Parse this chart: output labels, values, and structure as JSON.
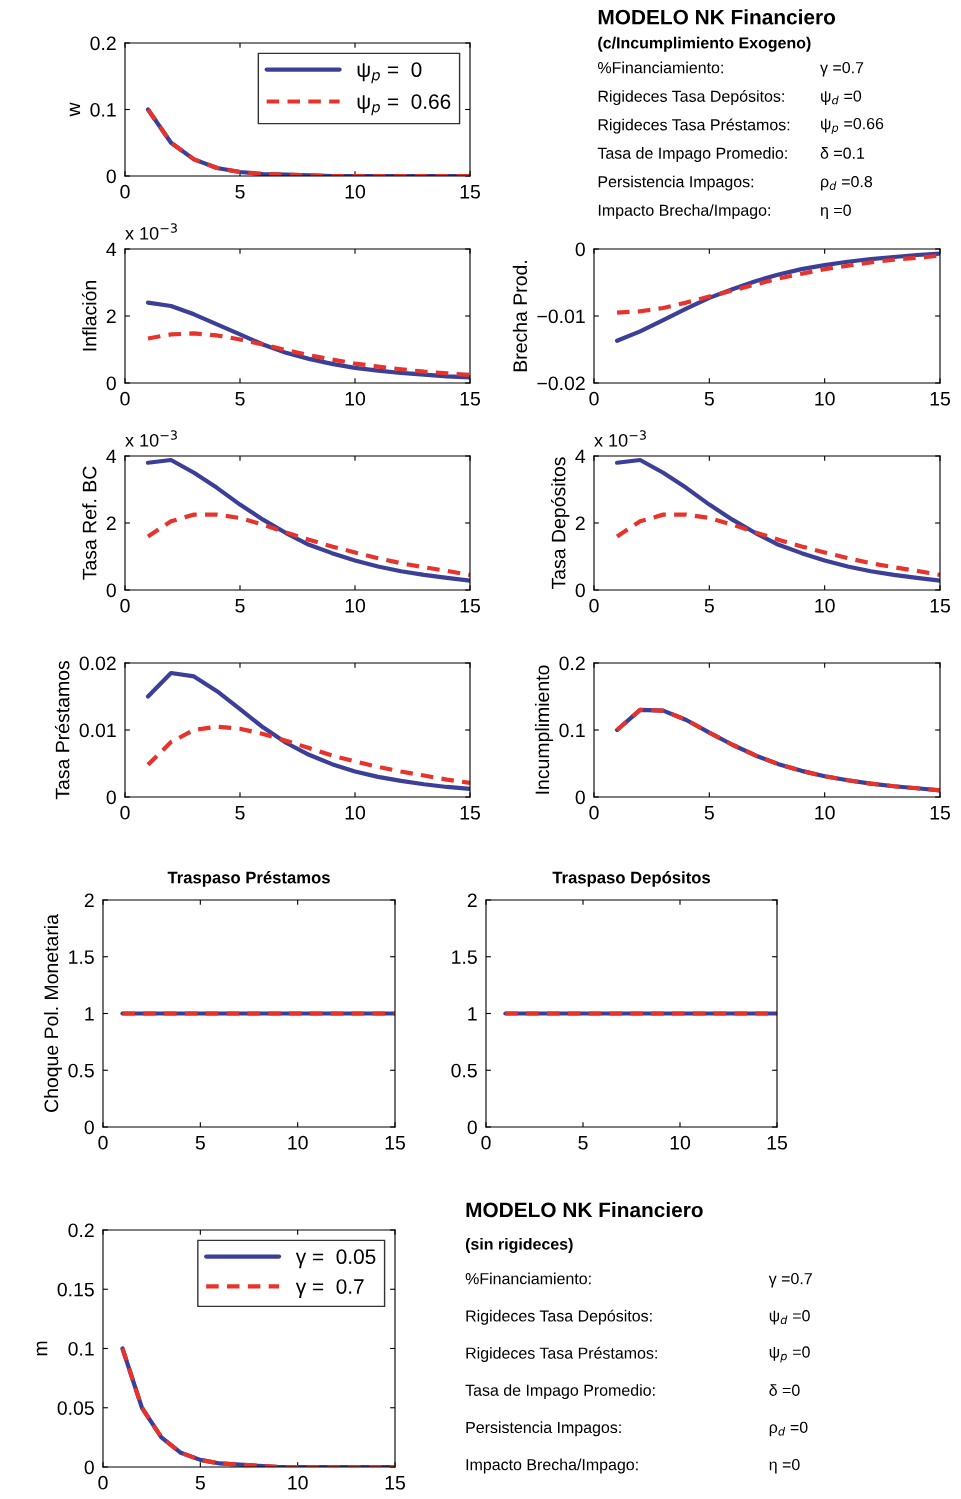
{
  "chart_data": [
    {
      "type": "line",
      "ylabel": "w",
      "x": [
        1,
        2,
        3,
        4,
        5,
        6,
        7,
        8,
        9,
        10,
        11,
        12,
        13,
        14,
        15
      ],
      "xlim": [
        0,
        15
      ],
      "xticks": [
        0,
        5,
        10,
        15
      ],
      "ylim": [
        0,
        0.2
      ],
      "yticks": [
        0,
        0.1,
        0.2
      ],
      "legend": "top right",
      "series": [
        {
          "name": "ψ$_{p}$ =  0",
          "color": "#3b3f98",
          "line_style": "solid",
          "values": [
            0.1,
            0.05,
            0.025,
            0.012,
            0.006,
            0.003,
            0.002,
            0.001,
            0,
            0,
            0,
            0,
            0,
            0,
            0
          ]
        },
        {
          "name": "ψ$_{p}$ =  0.66",
          "color": "#e8332a",
          "line_style": "dashed",
          "values": [
            0.1,
            0.05,
            0.025,
            0.012,
            0.006,
            0.003,
            0.002,
            0.001,
            0,
            0,
            0,
            0,
            0,
            0,
            0
          ]
        }
      ]
    },
    {
      "type": "other",
      "title": "MODELO NK Financiero",
      "subtitle": "(c/Incumplimiento Exogeno)",
      "annotations": [
        "%Financiamiento:",
        "γ =0.7",
        "Rigideces Tasa Depósitos:",
        "ψ$_{d}$ =0",
        "Rigideces Tasa Préstamos:",
        "ψ$_{p}$ =0.66",
        "Tasa de Impago Promedio:",
        "δ =0.1",
        "Persistencia Impagos:",
        "ρ$_{d}$ =0.8",
        "Impacto Brecha/Impago:",
        "η =0"
      ]
    },
    {
      "type": "line",
      "ylabel": "Inflación",
      "annotations": [
        "x 10$^{−3}$"
      ],
      "x": [
        1,
        2,
        3,
        4,
        5,
        6,
        7,
        8,
        9,
        10,
        11,
        12,
        13,
        14,
        15
      ],
      "xlim": [
        0,
        15
      ],
      "xticks": [
        0,
        5,
        10,
        15
      ],
      "ylim": [
        0,
        4
      ],
      "yticks": [
        0,
        2,
        4
      ],
      "series": [
        {
          "color": "#3b3f98",
          "line_style": "solid",
          "values": [
            2.4,
            2.3,
            2.05,
            1.75,
            1.45,
            1.15,
            0.9,
            0.72,
            0.57,
            0.45,
            0.37,
            0.3,
            0.25,
            0.2,
            0.17
          ]
        },
        {
          "color": "#e8332a",
          "line_style": "dashed",
          "values": [
            1.33,
            1.45,
            1.48,
            1.42,
            1.3,
            1.15,
            0.98,
            0.83,
            0.7,
            0.58,
            0.49,
            0.41,
            0.34,
            0.29,
            0.24
          ]
        }
      ]
    },
    {
      "type": "line",
      "ylabel": "Brecha Prod.",
      "x": [
        1,
        2,
        3,
        4,
        5,
        6,
        7,
        8,
        9,
        10,
        11,
        12,
        13,
        14,
        15
      ],
      "xlim": [
        0,
        15
      ],
      "xticks": [
        0,
        5,
        10,
        15
      ],
      "ylim": [
        -0.02,
        0
      ],
      "yticks": [
        {
          "value": -0.02,
          "label": "−0.02"
        },
        {
          "value": -0.01,
          "label": "−0.01"
        },
        0
      ],
      "series": [
        {
          "color": "#3b3f98",
          "line_style": "solid",
          "values": [
            -0.0137,
            -0.0123,
            -0.0106,
            -0.0089,
            -0.0073,
            -0.006,
            -0.0048,
            -0.0038,
            -0.003,
            -0.0024,
            -0.0019,
            -0.0015,
            -0.0012,
            -0.0009,
            -0.0007
          ]
        },
        {
          "color": "#e8332a",
          "line_style": "dashed",
          "values": [
            -0.0095,
            -0.0093,
            -0.0088,
            -0.008,
            -0.0071,
            -0.0062,
            -0.0053,
            -0.0044,
            -0.0037,
            -0.003,
            -0.0025,
            -0.002,
            -0.0016,
            -0.0013,
            -0.001
          ]
        }
      ]
    },
    {
      "type": "line",
      "ylabel": "Tasa Ref. BC",
      "annotations": [
        "x 10$^{−3}$"
      ],
      "x": [
        1,
        2,
        3,
        4,
        5,
        6,
        7,
        8,
        9,
        10,
        11,
        12,
        13,
        14,
        15
      ],
      "xlim": [
        0,
        15
      ],
      "xticks": [
        0,
        5,
        10,
        15
      ],
      "ylim": [
        0,
        4
      ],
      "yticks": [
        0,
        2,
        4
      ],
      "series": [
        {
          "color": "#3b3f98",
          "line_style": "solid",
          "values": [
            3.8,
            3.88,
            3.5,
            3.05,
            2.55,
            2.1,
            1.7,
            1.35,
            1.1,
            0.88,
            0.7,
            0.56,
            0.45,
            0.36,
            0.28
          ]
        },
        {
          "color": "#e8332a",
          "line_style": "dashed",
          "values": [
            1.6,
            2.05,
            2.25,
            2.25,
            2.15,
            1.95,
            1.72,
            1.5,
            1.3,
            1.12,
            0.95,
            0.8,
            0.68,
            0.57,
            0.45
          ]
        }
      ]
    },
    {
      "type": "line",
      "ylabel": "Tasa Depósitos",
      "annotations": [
        "x 10$^{−3}$"
      ],
      "x": [
        1,
        2,
        3,
        4,
        5,
        6,
        7,
        8,
        9,
        10,
        11,
        12,
        13,
        14,
        15
      ],
      "xlim": [
        0,
        15
      ],
      "xticks": [
        0,
        5,
        10,
        15
      ],
      "ylim": [
        0,
        4
      ],
      "yticks": [
        0,
        2,
        4
      ],
      "series": [
        {
          "color": "#3b3f98",
          "line_style": "solid",
          "values": [
            3.8,
            3.88,
            3.5,
            3.05,
            2.55,
            2.1,
            1.7,
            1.35,
            1.1,
            0.88,
            0.7,
            0.56,
            0.45,
            0.36,
            0.28
          ]
        },
        {
          "color": "#e8332a",
          "line_style": "dashed",
          "values": [
            1.6,
            2.05,
            2.25,
            2.25,
            2.15,
            1.95,
            1.72,
            1.5,
            1.3,
            1.12,
            0.95,
            0.8,
            0.68,
            0.57,
            0.45
          ]
        }
      ]
    },
    {
      "type": "line",
      "ylabel": "Tasa Préstamos",
      "x": [
        1,
        2,
        3,
        4,
        5,
        6,
        7,
        8,
        9,
        10,
        11,
        12,
        13,
        14,
        15
      ],
      "xlim": [
        0,
        15
      ],
      "xticks": [
        0,
        5,
        10,
        15
      ],
      "ylim": [
        0,
        0.02
      ],
      "yticks": [
        0,
        0.01,
        0.02
      ],
      "series": [
        {
          "color": "#3b3f98",
          "line_style": "solid",
          "values": [
            0.015,
            0.0185,
            0.018,
            0.0158,
            0.0131,
            0.0104,
            0.0081,
            0.0063,
            0.0049,
            0.0038,
            0.003,
            0.0024,
            0.0019,
            0.0015,
            0.0012
          ]
        },
        {
          "color": "#e8332a",
          "line_style": "dashed",
          "values": [
            0.0048,
            0.0082,
            0.01,
            0.0105,
            0.0102,
            0.0094,
            0.0084,
            0.0073,
            0.0062,
            0.0053,
            0.0045,
            0.0038,
            0.0032,
            0.0026,
            0.0021
          ]
        }
      ]
    },
    {
      "type": "line",
      "ylabel": "Incumplimiento",
      "x": [
        1,
        2,
        3,
        4,
        5,
        6,
        7,
        8,
        9,
        10,
        11,
        12,
        13,
        14,
        15
      ],
      "xlim": [
        0,
        15
      ],
      "xticks": [
        0,
        5,
        10,
        15
      ],
      "ylim": [
        0,
        0.2
      ],
      "yticks": [
        0,
        0.1,
        0.2
      ],
      "series": [
        {
          "color": "#3b3f98",
          "line_style": "solid",
          "values": [
            0.1,
            0.13,
            0.129,
            0.115,
            0.096,
            0.078,
            0.062,
            0.049,
            0.039,
            0.031,
            0.025,
            0.02,
            0.016,
            0.013,
            0.01
          ]
        },
        {
          "color": "#e8332a",
          "line_style": "dashed",
          "values": [
            0.1,
            0.13,
            0.129,
            0.115,
            0.096,
            0.078,
            0.062,
            0.049,
            0.039,
            0.031,
            0.025,
            0.02,
            0.016,
            0.013,
            0.01
          ]
        }
      ]
    },
    {
      "type": "line",
      "title": "Traspaso Préstamos",
      "ylabel": "Choque Pol. Monetaria",
      "x": [
        1,
        2,
        3,
        4,
        5,
        6,
        7,
        8,
        9,
        10,
        11,
        12,
        13,
        14,
        15
      ],
      "xlim": [
        0,
        15
      ],
      "xticks": [
        0,
        5,
        10,
        15
      ],
      "ylim": [
        0,
        2
      ],
      "yticks": [
        0,
        0.5,
        1,
        1.5,
        2
      ],
      "series": [
        {
          "color": "#3b3f98",
          "line_style": "solid",
          "values": [
            1,
            1,
            1,
            1,
            1,
            1,
            1,
            1,
            1,
            1,
            1,
            1,
            1,
            1,
            1
          ]
        },
        {
          "color": "#e8332a",
          "line_style": "dashed",
          "values": [
            1,
            1,
            1,
            1,
            1,
            1,
            1,
            1,
            1,
            1,
            1,
            1,
            1,
            1,
            1
          ]
        }
      ]
    },
    {
      "type": "line",
      "title": "Traspaso Depósitos",
      "x": [
        1,
        2,
        3,
        4,
        5,
        6,
        7,
        8,
        9,
        10,
        11,
        12,
        13,
        14,
        15
      ],
      "xlim": [
        0,
        15
      ],
      "xticks": [
        0,
        5,
        10,
        15
      ],
      "ylim": [
        0,
        2
      ],
      "yticks": [
        0,
        0.5,
        1,
        1.5,
        2
      ],
      "series": [
        {
          "color": "#3b3f98",
          "line_style": "solid",
          "values": [
            1,
            1,
            1,
            1,
            1,
            1,
            1,
            1,
            1,
            1,
            1,
            1,
            1,
            1,
            1
          ]
        },
        {
          "color": "#e8332a",
          "line_style": "dashed",
          "values": [
            1,
            1,
            1,
            1,
            1,
            1,
            1,
            1,
            1,
            1,
            1,
            1,
            1,
            1,
            1
          ]
        }
      ]
    },
    {
      "type": "line",
      "ylabel": "m",
      "x": [
        1,
        2,
        3,
        4,
        5,
        6,
        7,
        8,
        9,
        10,
        11,
        12,
        13,
        14,
        15
      ],
      "xlim": [
        0,
        15
      ],
      "xticks": [
        0,
        5,
        10,
        15
      ],
      "ylim": [
        0,
        0.2
      ],
      "yticks": [
        0,
        0.05,
        0.1,
        0.15,
        0.2
      ],
      "legend": "top right",
      "series": [
        {
          "name": "γ =  0.05",
          "color": "#3b3f98",
          "line_style": "solid",
          "values": [
            0.1,
            0.05,
            0.025,
            0.012,
            0.006,
            0.003,
            0.002,
            0.001,
            0,
            0,
            0,
            0,
            0,
            0,
            0
          ]
        },
        {
          "name": "γ =  0.7",
          "color": "#e8332a",
          "line_style": "dashed",
          "values": [
            0.1,
            0.05,
            0.025,
            0.012,
            0.006,
            0.003,
            0.002,
            0.001,
            0,
            0,
            0,
            0,
            0,
            0,
            0
          ]
        }
      ]
    },
    {
      "type": "other",
      "title": "MODELO NK Financiero",
      "subtitle": "(sin rigideces)",
      "annotations": [
        "%Financiamiento:",
        "γ =0.7",
        "Rigideces Tasa Depósitos:",
        "ψ$_{d}$ =0",
        "Rigideces Tasa Préstamos:",
        "ψ$_{p}$ =0",
        "Tasa de Impago Promedio:",
        "δ =0",
        "Persistencia Impagos:",
        "ρ$_{d}$ =0",
        "Impacto Brecha/Impago:",
        "η =0"
      ]
    }
  ]
}
